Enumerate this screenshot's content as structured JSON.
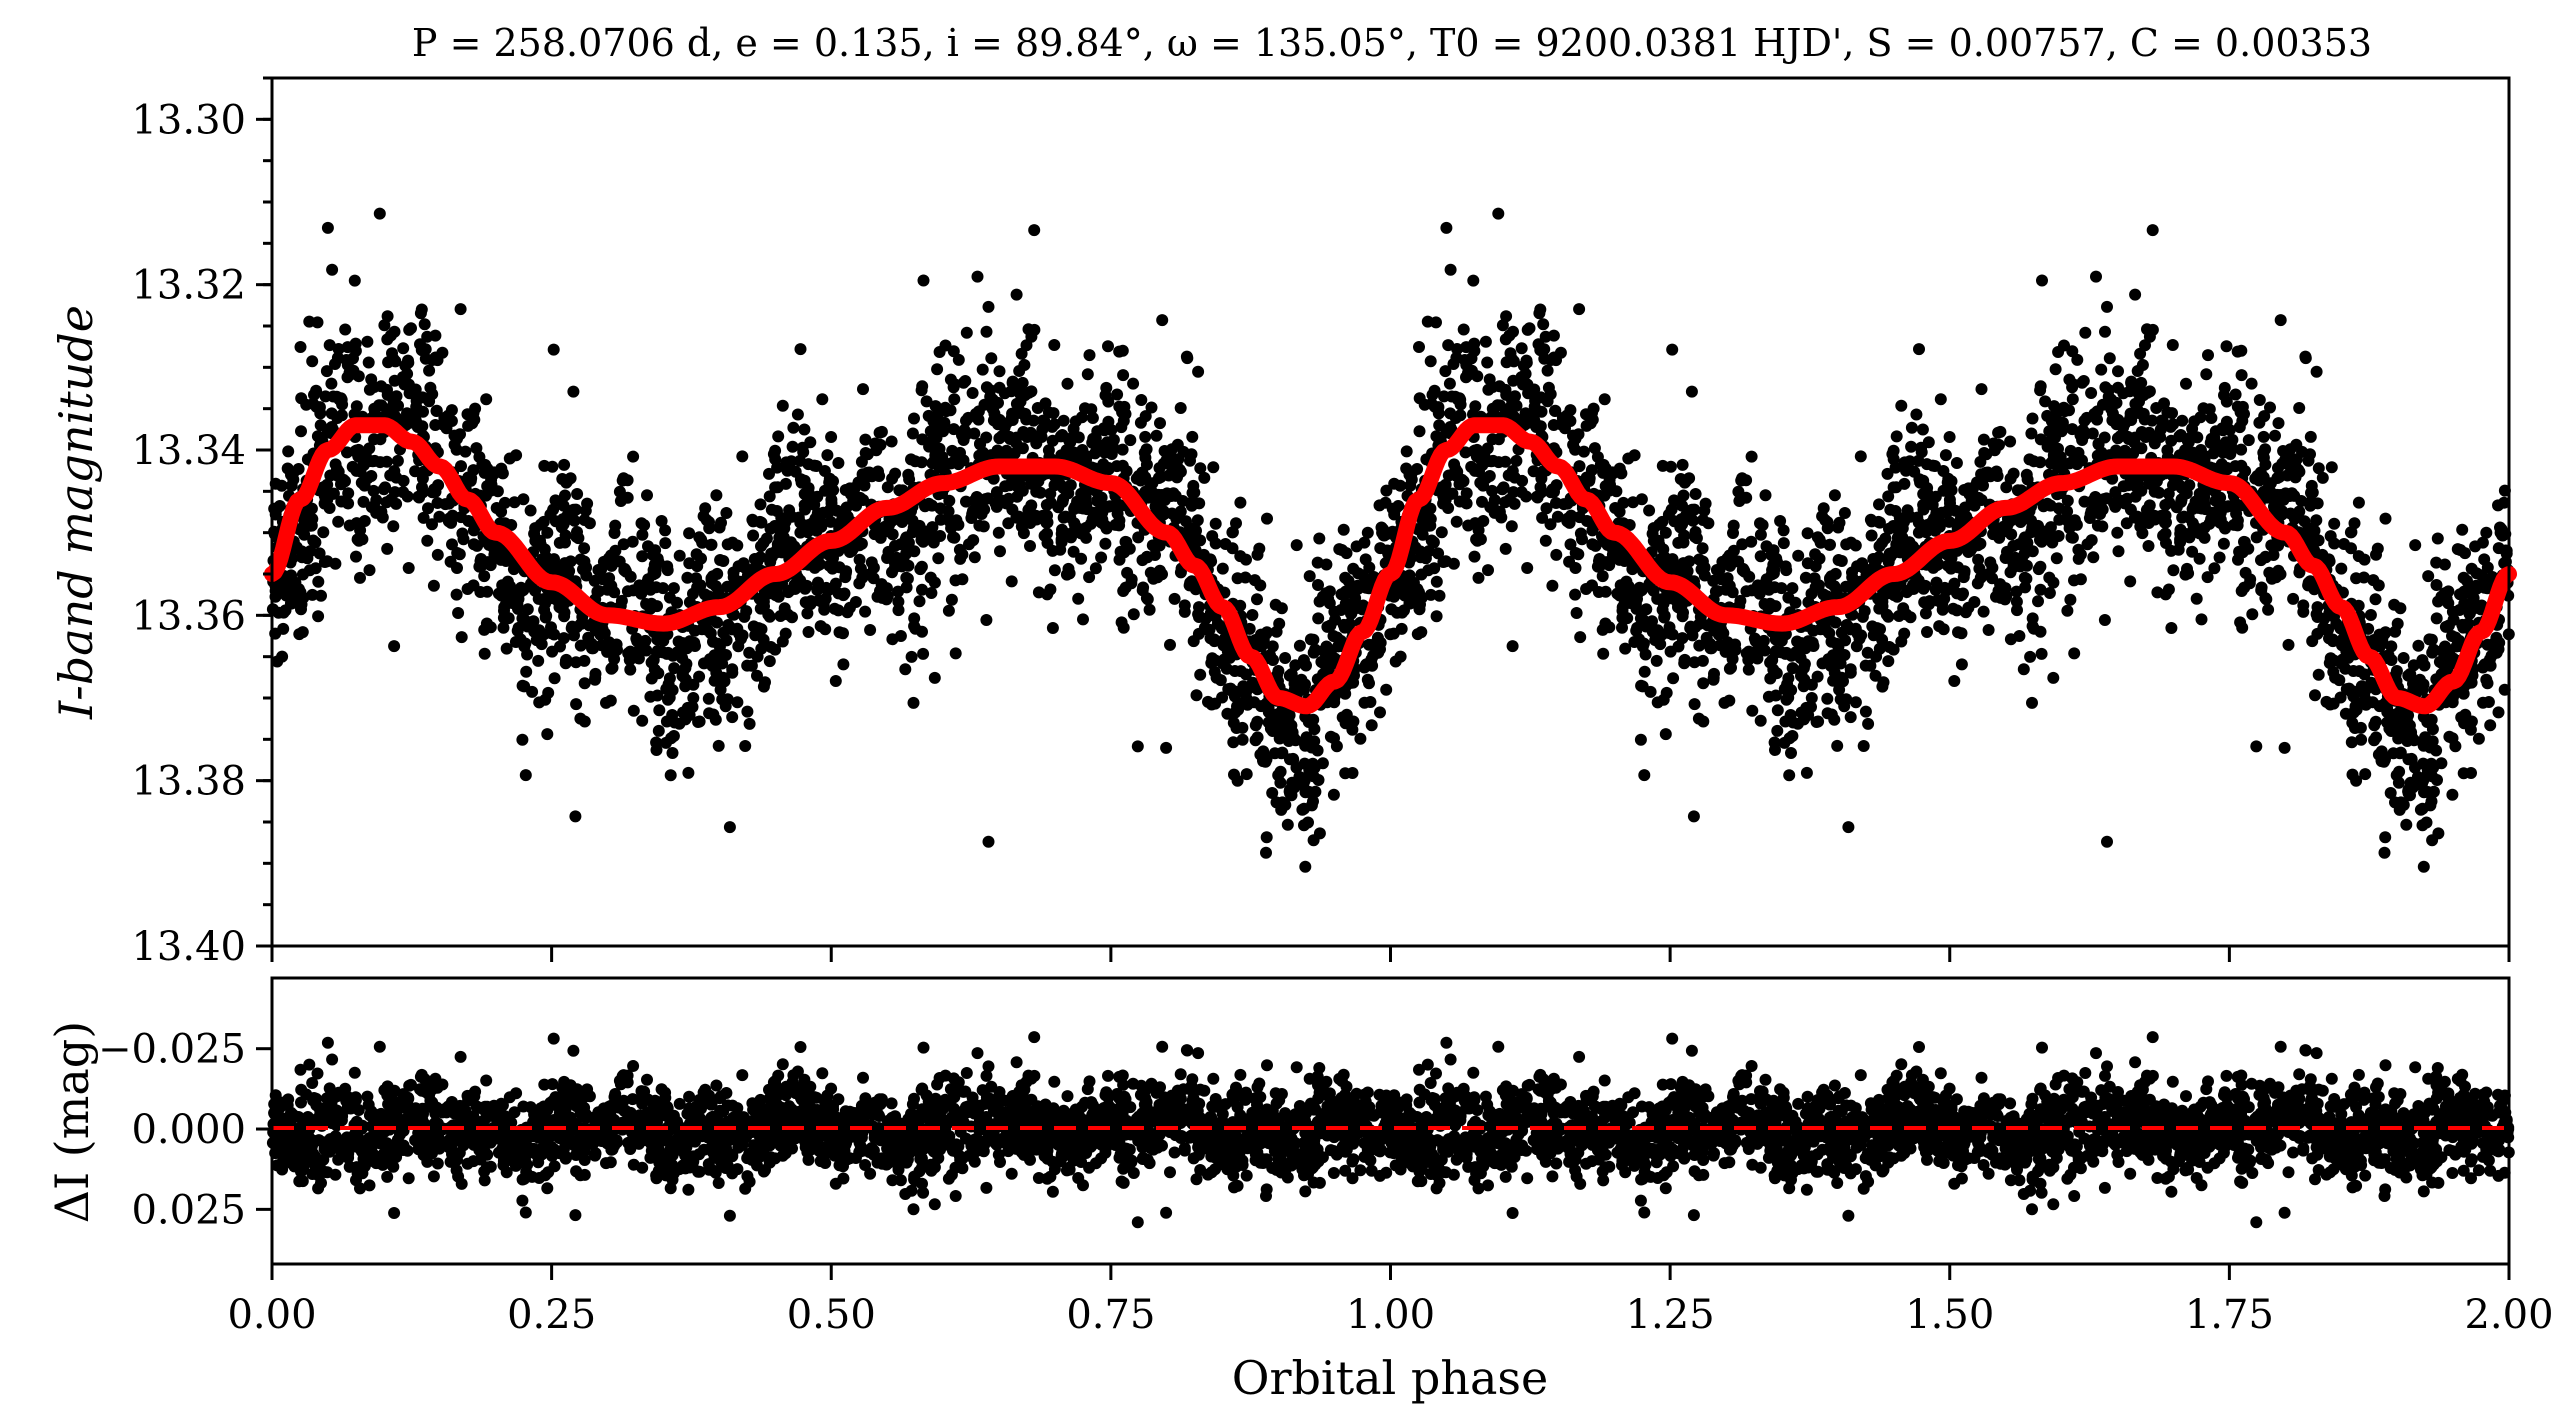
{
  "chart_data": [
    {
      "type": "scatter",
      "title": "P = 258.0706 d, e = 0.135, i = 89.84°, ω = 135.05°, T0 = 9200.0381 HJD', S = 0.00757, C = 0.00353",
      "xlabel": "",
      "ylabel": "I-band magnitude",
      "xlim": [
        0.0,
        2.0
      ],
      "ylim": [
        13.4,
        13.295
      ],
      "y_inverted": true,
      "yticks": [
        "13.30",
        "13.32",
        "13.34",
        "13.36",
        "13.38",
        "13.40"
      ],
      "x_tick_values": [
        0.0,
        0.25,
        0.5,
        0.75,
        1.0,
        1.25,
        1.5,
        1.75,
        2.0
      ],
      "grid": false,
      "series": [
        {
          "kind": "scatter",
          "color": "#000000",
          "note_points": "dense photometric points, several thousand per phase cycle, repeated across 0-2",
          "x": [
            0.0,
            0.05,
            0.1,
            0.15,
            0.2,
            0.25,
            0.3,
            0.35,
            0.4,
            0.45,
            0.5,
            0.55,
            0.6,
            0.65,
            0.7,
            0.75,
            0.8,
            0.85,
            0.9,
            0.95,
            1.0
          ],
          "y": [
            13.355,
            13.341,
            13.337,
            13.34,
            13.348,
            13.355,
            13.36,
            13.361,
            13.359,
            13.355,
            13.351,
            13.347,
            13.344,
            13.342,
            13.342,
            13.345,
            13.352,
            13.362,
            13.371,
            13.366,
            13.355
          ]
        },
        {
          "kind": "line",
          "color": "#ff0000",
          "x": [
            0.0,
            0.025,
            0.05,
            0.075,
            0.1,
            0.125,
            0.15,
            0.175,
            0.2,
            0.25,
            0.3,
            0.35,
            0.4,
            0.45,
            0.5,
            0.55,
            0.6,
            0.65,
            0.7,
            0.75,
            0.8,
            0.825,
            0.85,
            0.875,
            0.9,
            0.925,
            0.95,
            0.975,
            1.0,
            1.025,
            1.05,
            1.075,
            1.1,
            1.125,
            1.15,
            1.175,
            1.2,
            1.25,
            1.3,
            1.35,
            1.4,
            1.45,
            1.5,
            1.55,
            1.6,
            1.65,
            1.7,
            1.75,
            1.8,
            1.825,
            1.85,
            1.875,
            1.9,
            1.925,
            1.95,
            1.975,
            2.0
          ],
          "y": [
            13.355,
            13.346,
            13.34,
            13.337,
            13.337,
            13.339,
            13.342,
            13.346,
            13.35,
            13.356,
            13.36,
            13.361,
            13.359,
            13.355,
            13.351,
            13.347,
            13.344,
            13.342,
            13.342,
            13.344,
            13.35,
            13.354,
            13.359,
            13.365,
            13.37,
            13.371,
            13.368,
            13.362,
            13.355,
            13.346,
            13.34,
            13.337,
            13.337,
            13.339,
            13.342,
            13.346,
            13.35,
            13.356,
            13.36,
            13.361,
            13.359,
            13.355,
            13.351,
            13.347,
            13.344,
            13.342,
            13.342,
            13.344,
            13.35,
            13.354,
            13.359,
            13.365,
            13.37,
            13.371,
            13.368,
            13.362,
            13.355
          ]
        }
      ]
    },
    {
      "type": "scatter",
      "title": "",
      "xlabel": "Orbital phase",
      "ylabel": "ΔI (mag)",
      "xlim": [
        0.0,
        2.0
      ],
      "ylim": [
        0.042,
        -0.047
      ],
      "y_inverted": true,
      "yticks": [
        "−0.025",
        "0.000",
        "0.025"
      ],
      "xticks": [
        "0.00",
        "0.25",
        "0.50",
        "0.75",
        "1.00",
        "1.25",
        "1.50",
        "1.75",
        "2.00"
      ],
      "grid": false,
      "series": [
        {
          "kind": "scatter",
          "color": "#000000",
          "note_points": "residuals scattered roughly within ±0.02 mag around 0",
          "spread": 0.008
        },
        {
          "kind": "dashed-line",
          "color": "#ff0000",
          "x": [
            0.0,
            2.0
          ],
          "y": [
            0.0,
            0.0
          ]
        }
      ]
    }
  ]
}
